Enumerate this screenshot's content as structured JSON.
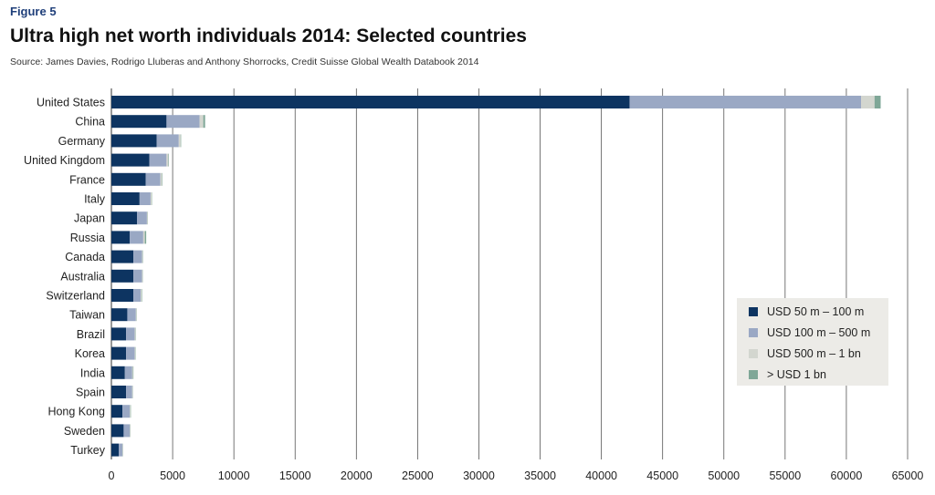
{
  "figure_label": "Figure 5",
  "title": "Ultra high net worth individuals 2014: Selected countries",
  "source": "Source: James Davies, Rodrigo Lluberas and Anthony Shorrocks, Credit Suisse Global Wealth Databook 2014",
  "colors": {
    "usd_50_100m": "#0d3461",
    "usd_100_500m": "#9aa8c4",
    "usd_500m_1bn": "#d3d6cf",
    "gt_1bn": "#7fa797",
    "gridline": "#555555",
    "legend_bg": "#ecebe7"
  },
  "chart_data": {
    "type": "bar",
    "orientation": "horizontal",
    "stacked": true,
    "categories": [
      "United States",
      "China",
      "Germany",
      "United Kingdom",
      "France",
      "Italy",
      "Japan",
      "Russia",
      "Canada",
      "Australia",
      "Switzerland",
      "Taiwan",
      "Brazil",
      "Korea",
      "India",
      "Spain",
      "Hong Kong",
      "Sweden",
      "Turkey"
    ],
    "series": [
      {
        "name": "USD 50 m – 100 m",
        "values": [
          42300,
          4500,
          3700,
          3100,
          2800,
          2300,
          2100,
          1500,
          1800,
          1800,
          1800,
          1300,
          1200,
          1200,
          1100,
          1200,
          900,
          1000,
          600
        ]
      },
      {
        "name": "USD 100 m – 500 m",
        "values": [
          18900,
          2700,
          1800,
          1400,
          1200,
          900,
          800,
          1100,
          700,
          700,
          600,
          700,
          700,
          700,
          600,
          500,
          600,
          500,
          300
        ]
      },
      {
        "name": "USD 500 m – 1 bn",
        "values": [
          1100,
          300,
          150,
          150,
          120,
          80,
          60,
          130,
          50,
          50,
          60,
          50,
          60,
          50,
          60,
          40,
          50,
          40,
          30
        ]
      },
      {
        "name": "> USD 1 bn",
        "values": [
          500,
          150,
          40,
          40,
          40,
          30,
          20,
          110,
          30,
          20,
          40,
          20,
          30,
          30,
          40,
          20,
          40,
          20,
          20
        ]
      }
    ],
    "xlim": [
      0,
      65000
    ],
    "xticks": [
      "0",
      "5000",
      "10000",
      "15000",
      "20000",
      "25000",
      "30000",
      "35000",
      "40000",
      "45000",
      "50000",
      "55000",
      "60000",
      "65000"
    ],
    "grid": "vertical",
    "legend_position": "bottom-right"
  }
}
